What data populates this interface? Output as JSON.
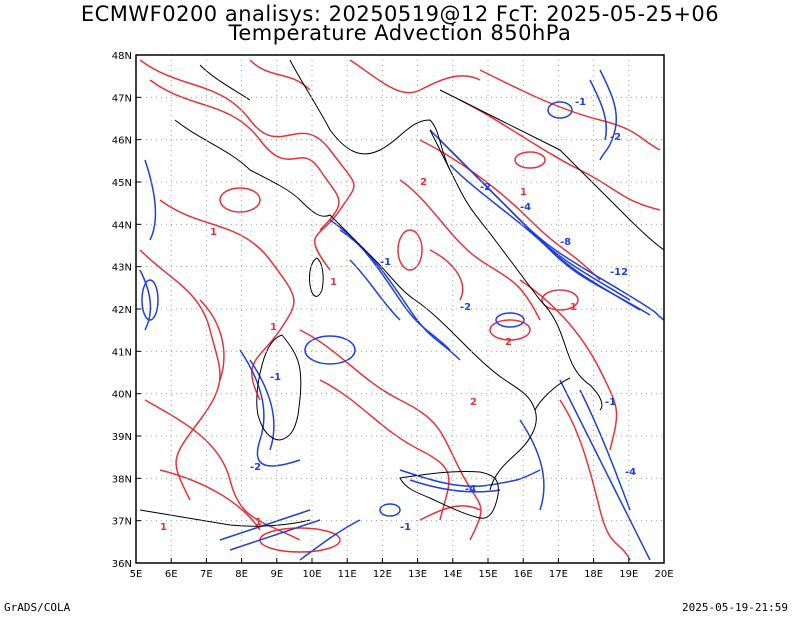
{
  "header": {
    "line1": "ECMWF0200 analisys: 20250519@12 FcT: 2025-05-25+06",
    "line2": "Temperature Advection 850hPa"
  },
  "footer": {
    "left": "GrADS/COLA",
    "right": "2025-05-19-21:59"
  },
  "map": {
    "projection": "lat-lon",
    "lon_range": [
      5,
      20
    ],
    "lat_range": [
      36,
      48
    ],
    "lon_ticks": [
      "5E",
      "6E",
      "7E",
      "8E",
      "9E",
      "10E",
      "11E",
      "12E",
      "13E",
      "14E",
      "15E",
      "16E",
      "17E",
      "18E",
      "19E",
      "20E"
    ],
    "lat_ticks": [
      "36N",
      "37N",
      "38N",
      "39N",
      "40N",
      "41N",
      "42N",
      "43N",
      "44N",
      "45N",
      "46N",
      "47N",
      "48N"
    ],
    "colors": {
      "warm_advection": "#e8323a",
      "cold_advection": "#1f3fe0",
      "grid": "#a0a0a0",
      "coast": "#000000"
    },
    "contour_labels": [
      "-1",
      "-2",
      "1",
      "2",
      "-4",
      "-8",
      "-12"
    ]
  }
}
